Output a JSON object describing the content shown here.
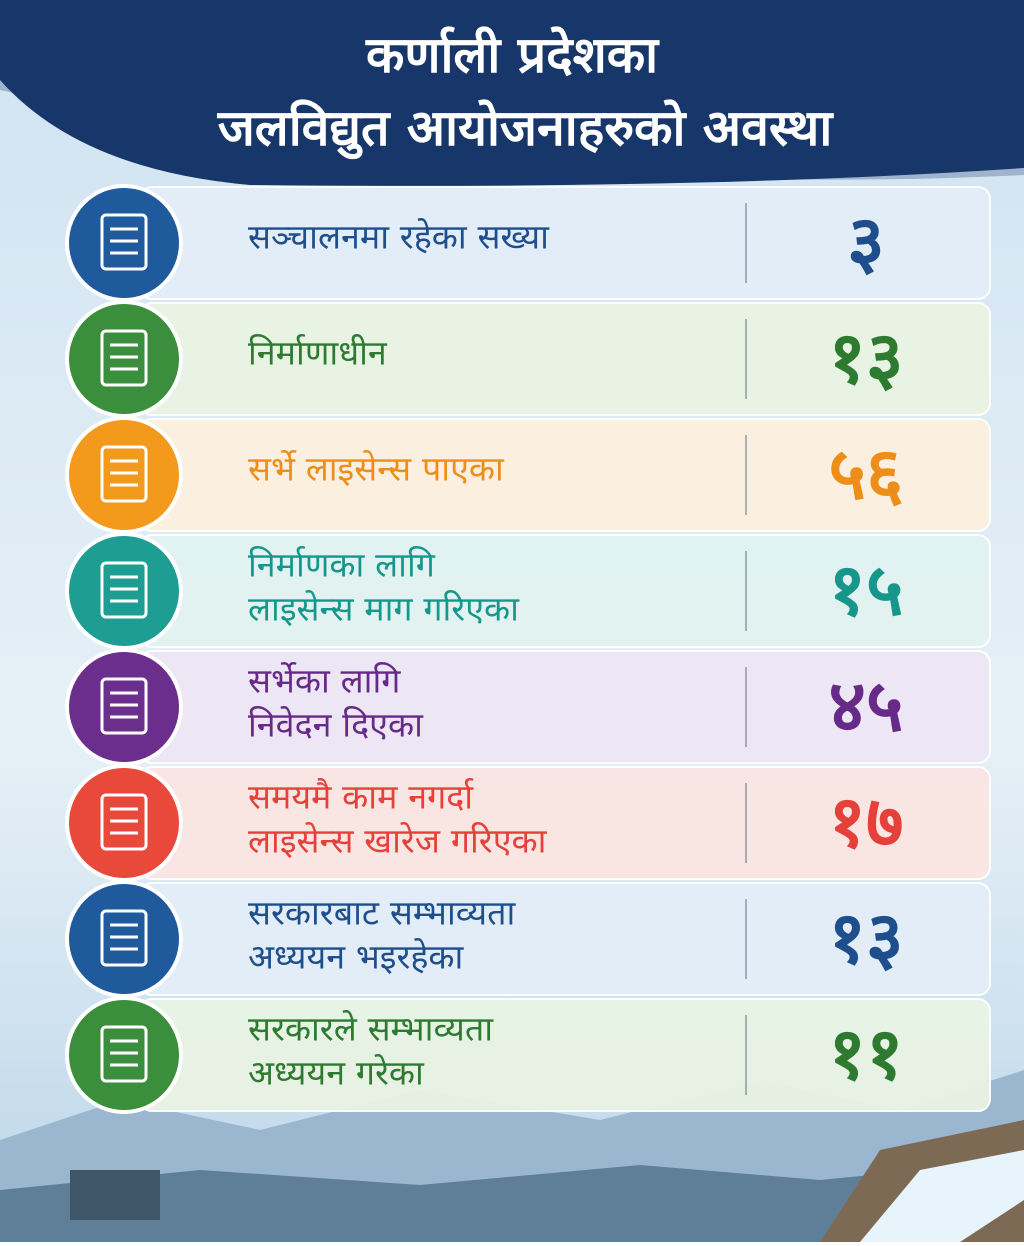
{
  "header": {
    "title": [
      "कर्णाली प्रदेशका",
      "जलविद्युत आयोजनाहरुको अवस्था"
    ]
  },
  "rows": [
    {
      "label": [
        "सञ्चालनमा रहेका  सख्या"
      ],
      "value": "३"
    },
    {
      "label": [
        "निर्माणाधीन"
      ],
      "value": "१३"
    },
    {
      "label": [
        "सर्भे लाइसेन्स पाएका"
      ],
      "value": "५६"
    },
    {
      "label": [
        "निर्माणका लागि",
        "लाइसेन्स माग गरिएका"
      ],
      "value": "१५"
    },
    {
      "label": [
        "सर्भेका लागि",
        "निवेदन दिएका"
      ],
      "value": "४५"
    },
    {
      "label": [
        "समयमै काम नगर्दा",
        "लाइसेन्स खारेज गरिएका"
      ],
      "value": "१७"
    },
    {
      "label": [
        "सरकारबाट सम्भाव्यता",
        "अध्ययन भइरहेका"
      ],
      "value": "१३"
    },
    {
      "label": [
        "सरकारले सम्भाव्यता",
        "अध्ययन गरेका"
      ],
      "value": "११"
    }
  ]
}
